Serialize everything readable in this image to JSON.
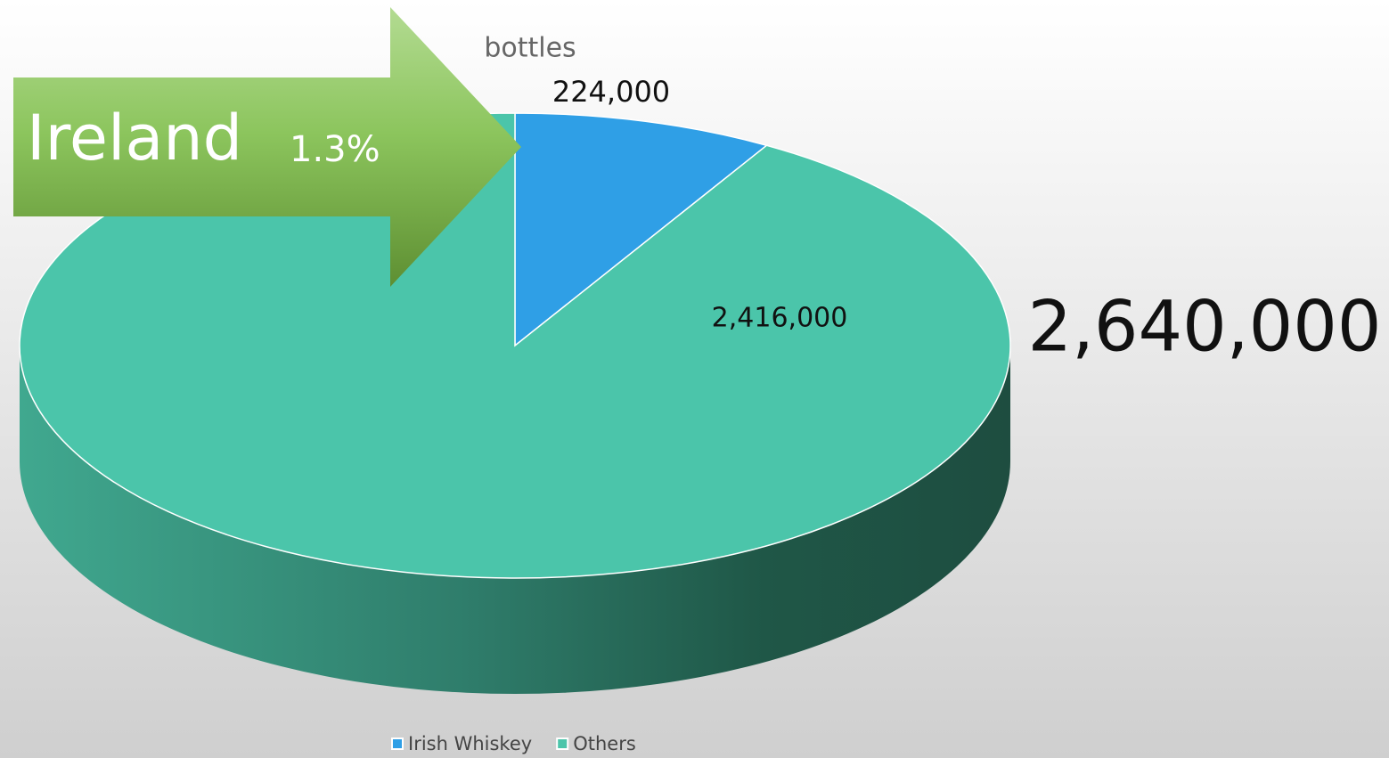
{
  "chart_data": {
    "type": "pie",
    "title": "bottles",
    "categories": [
      "Irish Whiskey",
      "Others"
    ],
    "values": [
      224000,
      2416000
    ],
    "value_labels": [
      "224,000",
      "2,416,000"
    ],
    "colors": [
      "#2f9fe6",
      "#4bc5aa"
    ],
    "legend": "bottom",
    "annotations": [
      "Ireland",
      "1.3%",
      "2,640,000"
    ]
  }
}
